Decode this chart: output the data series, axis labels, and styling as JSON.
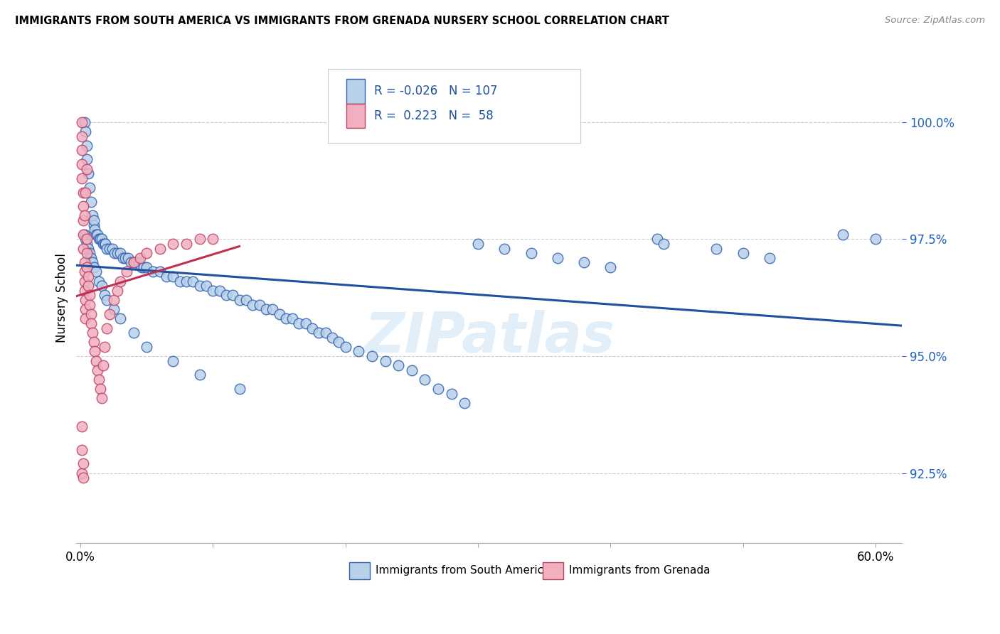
{
  "title": "IMMIGRANTS FROM SOUTH AMERICA VS IMMIGRANTS FROM GRENADA NURSERY SCHOOL CORRELATION CHART",
  "source": "Source: ZipAtlas.com",
  "ylabel": "Nursery School",
  "ytick_values": [
    92.5,
    95.0,
    97.5,
    100.0
  ],
  "ytick_labels": [
    "92.5%",
    "95.0%",
    "97.5%",
    "100.0%"
  ],
  "ymin": 91.0,
  "ymax": 101.5,
  "xmin": -0.003,
  "xmax": 0.62,
  "legend_blue_r": "-0.026",
  "legend_blue_n": "107",
  "legend_pink_r": "0.223",
  "legend_pink_n": "58",
  "blue_fill": "#b8d0e8",
  "blue_edge": "#3060b0",
  "pink_fill": "#f0b0c0",
  "pink_edge": "#c04060",
  "blue_line": "#2050a0",
  "pink_line": "#c03050",
  "blue_scatter_x": [
    0.003,
    0.004,
    0.005,
    0.005,
    0.006,
    0.007,
    0.008,
    0.009,
    0.01,
    0.01,
    0.011,
    0.012,
    0.013,
    0.014,
    0.015,
    0.016,
    0.017,
    0.018,
    0.019,
    0.02,
    0.022,
    0.024,
    0.026,
    0.028,
    0.03,
    0.032,
    0.034,
    0.036,
    0.038,
    0.04,
    0.042,
    0.044,
    0.046,
    0.048,
    0.05,
    0.055,
    0.06,
    0.065,
    0.07,
    0.075,
    0.08,
    0.085,
    0.09,
    0.095,
    0.1,
    0.105,
    0.11,
    0.115,
    0.12,
    0.125,
    0.13,
    0.135,
    0.14,
    0.145,
    0.15,
    0.155,
    0.16,
    0.165,
    0.17,
    0.175,
    0.18,
    0.185,
    0.19,
    0.195,
    0.2,
    0.21,
    0.22,
    0.23,
    0.24,
    0.25,
    0.26,
    0.27,
    0.28,
    0.29,
    0.3,
    0.32,
    0.34,
    0.36,
    0.38,
    0.4,
    0.003,
    0.004,
    0.005,
    0.006,
    0.007,
    0.008,
    0.009,
    0.01,
    0.012,
    0.014,
    0.016,
    0.018,
    0.02,
    0.025,
    0.03,
    0.04,
    0.05,
    0.07,
    0.09,
    0.12,
    0.435,
    0.44,
    0.48,
    0.5,
    0.52,
    0.575,
    0.6
  ],
  "blue_scatter_y": [
    100.0,
    99.8,
    99.5,
    99.2,
    98.9,
    98.6,
    98.3,
    98.0,
    97.8,
    97.9,
    97.7,
    97.6,
    97.6,
    97.5,
    97.5,
    97.5,
    97.4,
    97.4,
    97.4,
    97.3,
    97.3,
    97.3,
    97.2,
    97.2,
    97.2,
    97.1,
    97.1,
    97.1,
    97.0,
    97.0,
    97.0,
    97.0,
    96.9,
    96.9,
    96.9,
    96.8,
    96.8,
    96.7,
    96.7,
    96.6,
    96.6,
    96.6,
    96.5,
    96.5,
    96.4,
    96.4,
    96.3,
    96.3,
    96.2,
    96.2,
    96.1,
    96.1,
    96.0,
    96.0,
    95.9,
    95.8,
    95.8,
    95.7,
    95.7,
    95.6,
    95.5,
    95.5,
    95.4,
    95.3,
    95.2,
    95.1,
    95.0,
    94.9,
    94.8,
    94.7,
    94.5,
    94.3,
    94.2,
    94.0,
    97.4,
    97.3,
    97.2,
    97.1,
    97.0,
    96.9,
    97.6,
    97.5,
    97.4,
    97.3,
    97.2,
    97.1,
    97.0,
    96.9,
    96.8,
    96.6,
    96.5,
    96.3,
    96.2,
    96.0,
    95.8,
    95.5,
    95.2,
    94.9,
    94.6,
    94.3,
    97.5,
    97.4,
    97.3,
    97.2,
    97.1,
    97.6,
    97.5
  ],
  "pink_scatter_x": [
    0.001,
    0.001,
    0.001,
    0.001,
    0.001,
    0.002,
    0.002,
    0.002,
    0.002,
    0.002,
    0.003,
    0.003,
    0.003,
    0.003,
    0.004,
    0.004,
    0.004,
    0.005,
    0.005,
    0.005,
    0.006,
    0.006,
    0.007,
    0.007,
    0.008,
    0.008,
    0.009,
    0.01,
    0.011,
    0.012,
    0.013,
    0.014,
    0.015,
    0.016,
    0.017,
    0.018,
    0.02,
    0.022,
    0.025,
    0.028,
    0.03,
    0.035,
    0.04,
    0.045,
    0.05,
    0.06,
    0.07,
    0.08,
    0.09,
    0.1,
    0.001,
    0.001,
    0.001,
    0.002,
    0.002,
    0.003,
    0.004,
    0.005
  ],
  "pink_scatter_y": [
    100.0,
    99.7,
    99.4,
    99.1,
    98.8,
    98.5,
    98.2,
    97.9,
    97.6,
    97.3,
    97.0,
    96.8,
    96.6,
    96.4,
    96.2,
    96.0,
    95.8,
    97.5,
    97.2,
    96.9,
    96.7,
    96.5,
    96.3,
    96.1,
    95.9,
    95.7,
    95.5,
    95.3,
    95.1,
    94.9,
    94.7,
    94.5,
    94.3,
    94.1,
    94.8,
    95.2,
    95.6,
    95.9,
    96.2,
    96.4,
    96.6,
    96.8,
    97.0,
    97.1,
    97.2,
    97.3,
    97.4,
    97.4,
    97.5,
    97.5,
    93.5,
    93.0,
    92.5,
    92.7,
    92.4,
    98.0,
    98.5,
    99.0
  ]
}
